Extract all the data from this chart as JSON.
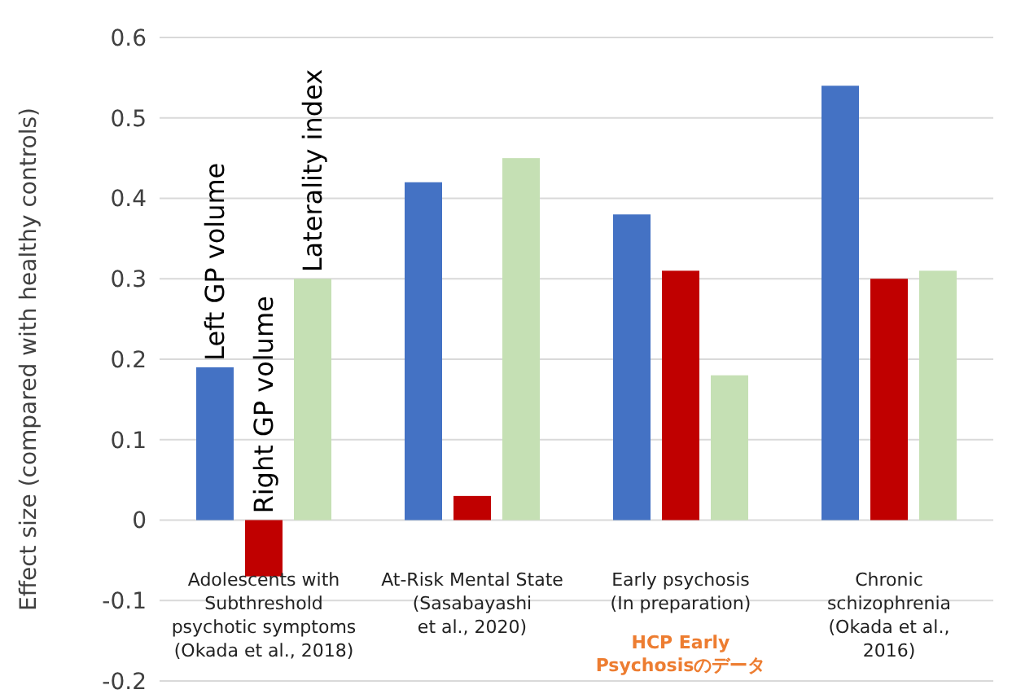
{
  "chart_data": {
    "type": "bar",
    "ylabel": "Effect size (compared with healthy controls)",
    "categories": [
      "Adolescents with\nSubthreshold\npsychotic symptoms\n(Okada et al., 2018)",
      "At-Risk Mental State\n(Sasabayashi\net al., 2020)",
      "Early psychosis\n(In preparation)",
      "Chronic\nschizophrenia\n(Okada et al.,\n2016)"
    ],
    "series": [
      {
        "name": "Left GP volume",
        "color": "#4472c4",
        "values": [
          0.19,
          0.42,
          0.38,
          0.54
        ]
      },
      {
        "name": "Right GP volume",
        "color": "#c00000",
        "values": [
          -0.07,
          0.03,
          0.31,
          0.3
        ]
      },
      {
        "name": "Laterality index",
        "color": "#c5e0b4",
        "values": [
          0.3,
          0.45,
          0.18,
          0.31
        ]
      }
    ],
    "ylim": [
      -0.2,
      0.6
    ],
    "yticks": [
      -0.2,
      -0.1,
      0,
      0.1,
      0.2,
      0.3,
      0.4,
      0.5,
      0.6
    ],
    "grid": "y",
    "annotations": [
      "HCP Early\nPsychosisのデータ"
    ]
  }
}
